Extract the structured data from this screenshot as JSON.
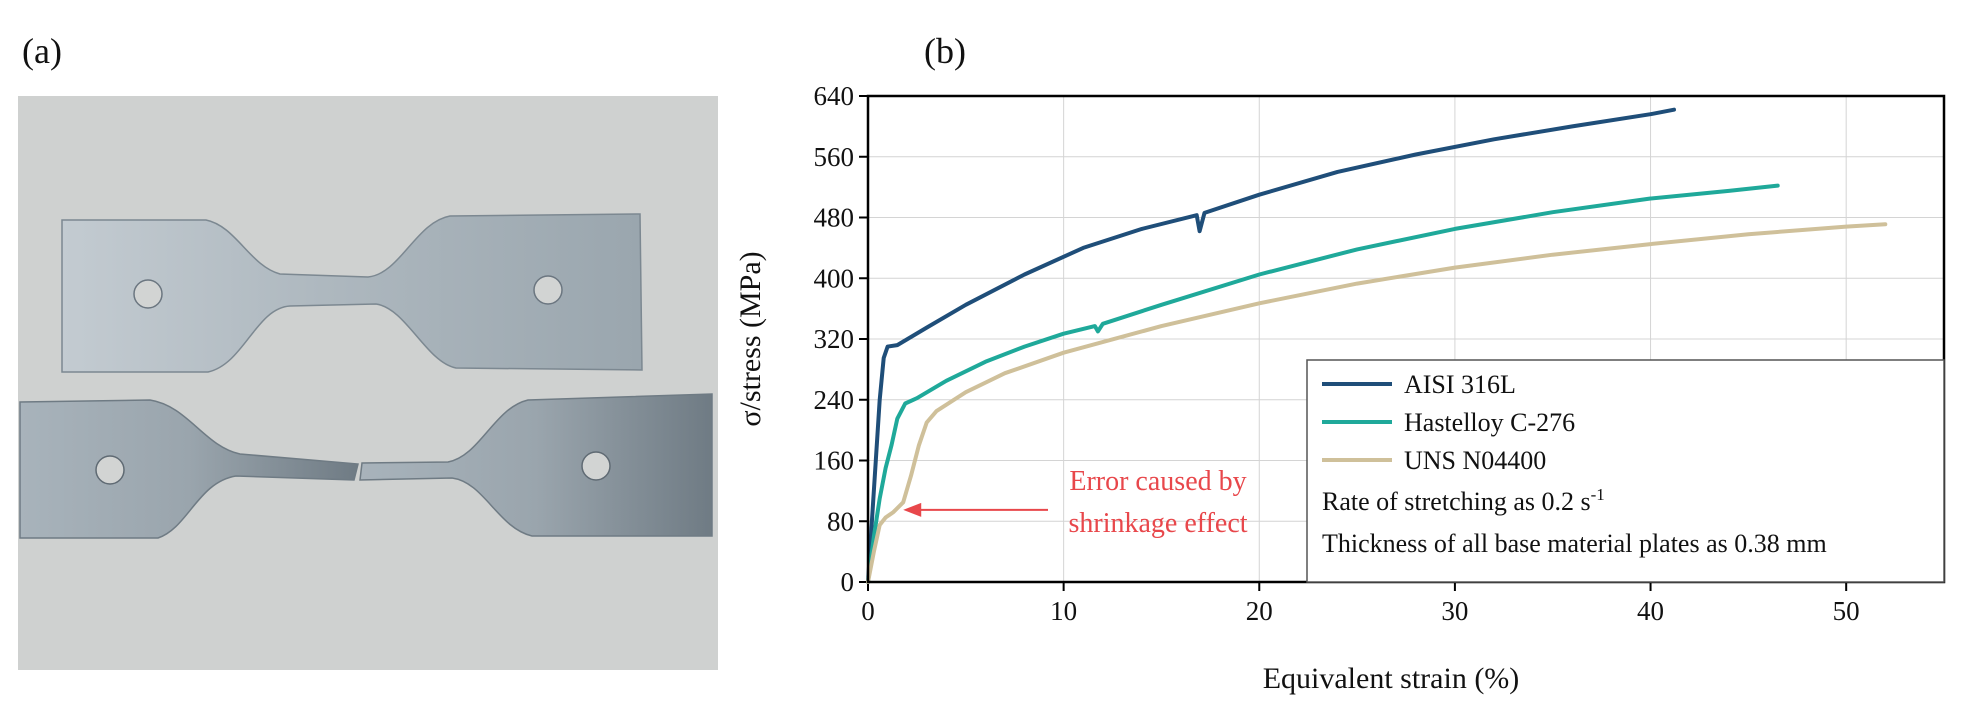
{
  "panels": {
    "a": "(a)",
    "b": "(b)"
  },
  "colors": {
    "photo_bg": "#cfd1d0",
    "metal": "#b3bcc2",
    "metal_edge": "#6f7c86",
    "annotation": "#e8474b",
    "grid": "#d4d4d4"
  },
  "chart_data": {
    "type": "line",
    "xlabel": "Equivalent strain (%)",
    "ylabel": "σ/stress (MPa)",
    "xlim": [
      0,
      55
    ],
    "ylim": [
      0,
      640
    ],
    "xticks": [
      0,
      10,
      20,
      30,
      40,
      50
    ],
    "yticks": [
      0,
      80,
      160,
      240,
      320,
      400,
      480,
      560,
      640
    ],
    "grid": true,
    "legend_position": "lower-right",
    "series": [
      {
        "name": "AISI 316L",
        "color": "#1f4e79",
        "points": [
          [
            0,
            0
          ],
          [
            0.2,
            80
          ],
          [
            0.4,
            160
          ],
          [
            0.6,
            240
          ],
          [
            0.8,
            295
          ],
          [
            1,
            310
          ],
          [
            1.5,
            312
          ],
          [
            3,
            335
          ],
          [
            5,
            365
          ],
          [
            8,
            405
          ],
          [
            11,
            440
          ],
          [
            14,
            465
          ],
          [
            16.8,
            483
          ],
          [
            16.95,
            462
          ],
          [
            17.2,
            486
          ],
          [
            20,
            510
          ],
          [
            24,
            540
          ],
          [
            28,
            563
          ],
          [
            32,
            583
          ],
          [
            36,
            600
          ],
          [
            40,
            616
          ],
          [
            41.2,
            622
          ]
        ]
      },
      {
        "name": "Hastelloy C-276",
        "color": "#1fa99a",
        "points": [
          [
            0,
            0
          ],
          [
            0.3,
            60
          ],
          [
            0.6,
            110
          ],
          [
            0.9,
            150
          ],
          [
            1.2,
            180
          ],
          [
            1.5,
            215
          ],
          [
            1.9,
            235
          ],
          [
            2.5,
            242
          ],
          [
            4,
            265
          ],
          [
            6,
            290
          ],
          [
            8,
            310
          ],
          [
            10,
            327
          ],
          [
            11.6,
            337
          ],
          [
            11.75,
            330
          ],
          [
            12,
            340
          ],
          [
            15,
            365
          ],
          [
            20,
            405
          ],
          [
            25,
            438
          ],
          [
            30,
            465
          ],
          [
            35,
            487
          ],
          [
            40,
            505
          ],
          [
            44,
            515
          ],
          [
            46.5,
            522
          ]
        ]
      },
      {
        "name": "UNS N04400",
        "color": "#cfc09a",
        "points": [
          [
            0,
            0
          ],
          [
            0.3,
            40
          ],
          [
            0.6,
            75
          ],
          [
            0.9,
            85
          ],
          [
            1.3,
            92
          ],
          [
            1.8,
            105
          ],
          [
            2.2,
            140
          ],
          [
            2.6,
            180
          ],
          [
            3,
            210
          ],
          [
            3.5,
            225
          ],
          [
            5,
            250
          ],
          [
            7,
            275
          ],
          [
            10,
            302
          ],
          [
            15,
            337
          ],
          [
            20,
            367
          ],
          [
            25,
            393
          ],
          [
            30,
            414
          ],
          [
            35,
            431
          ],
          [
            40,
            445
          ],
          [
            45,
            458
          ],
          [
            50,
            468
          ],
          [
            52,
            471
          ]
        ]
      }
    ],
    "annotations": [
      {
        "lines": [
          "Error caused by",
          "shrinkage effect"
        ],
        "arrow_to": [
          1.8,
          95
        ]
      }
    ],
    "notes": {
      "rate_text": "Rate of stretching as 0.2 s",
      "rate_sup": "-1",
      "thickness": "Thickness of all base material plates as 0.38 mm"
    }
  }
}
